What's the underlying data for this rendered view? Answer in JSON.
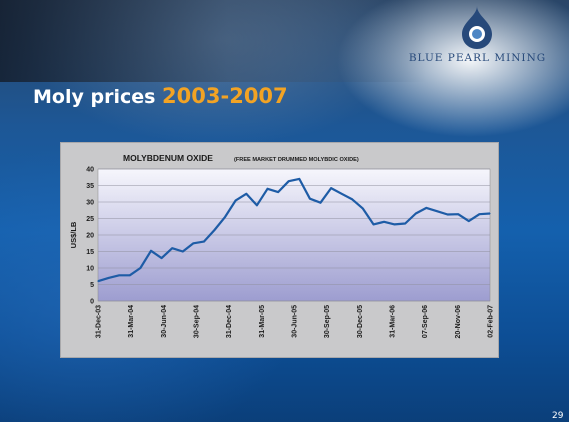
{
  "brand": {
    "name": "BLUE PEARL MINING",
    "accent_color": "#f2a324",
    "logo_icon": "pearl-drop-icon"
  },
  "slide": {
    "title_prefix": "Moly prices",
    "title_years": "2003-2007",
    "page_number": "29"
  },
  "chart_data": {
    "type": "line",
    "title": "MOLYBDENUM OXIDE",
    "subtitle": "(FREE MARKET DRUMMED MOLYBDIC OXIDE)",
    "xlabel": "",
    "ylabel": "US$/LB",
    "ylim": [
      0,
      40
    ],
    "yticks": [
      0,
      5,
      10,
      15,
      20,
      25,
      30,
      35,
      40
    ],
    "xticks": [
      "31-Dec-03",
      "31-Mar-04",
      "30-Jun-04",
      "30-Sep-04",
      "31-Dec-04",
      "31-Mar-05",
      "30-Jun-05",
      "30-Sep-05",
      "30-Dec-05",
      "31-Mar-06",
      "07-Sep-06",
      "20-Nov-06",
      "02-Feb-07"
    ],
    "grid": true,
    "line_color": "#1e5ca6",
    "series": [
      {
        "values": [
          6,
          7,
          7.8,
          7.8,
          10,
          15.2,
          13,
          16,
          15,
          17.5,
          18,
          21.5,
          25.5,
          30.5,
          32.5,
          29,
          34,
          33,
          36.3,
          37,
          31,
          29.8,
          34.2,
          32.5,
          30.8,
          28,
          23.2,
          24,
          23.2,
          23.5,
          26.5,
          28.2,
          27.2,
          26.2,
          26.3,
          24.2,
          26.3,
          26.5
        ]
      }
    ]
  }
}
